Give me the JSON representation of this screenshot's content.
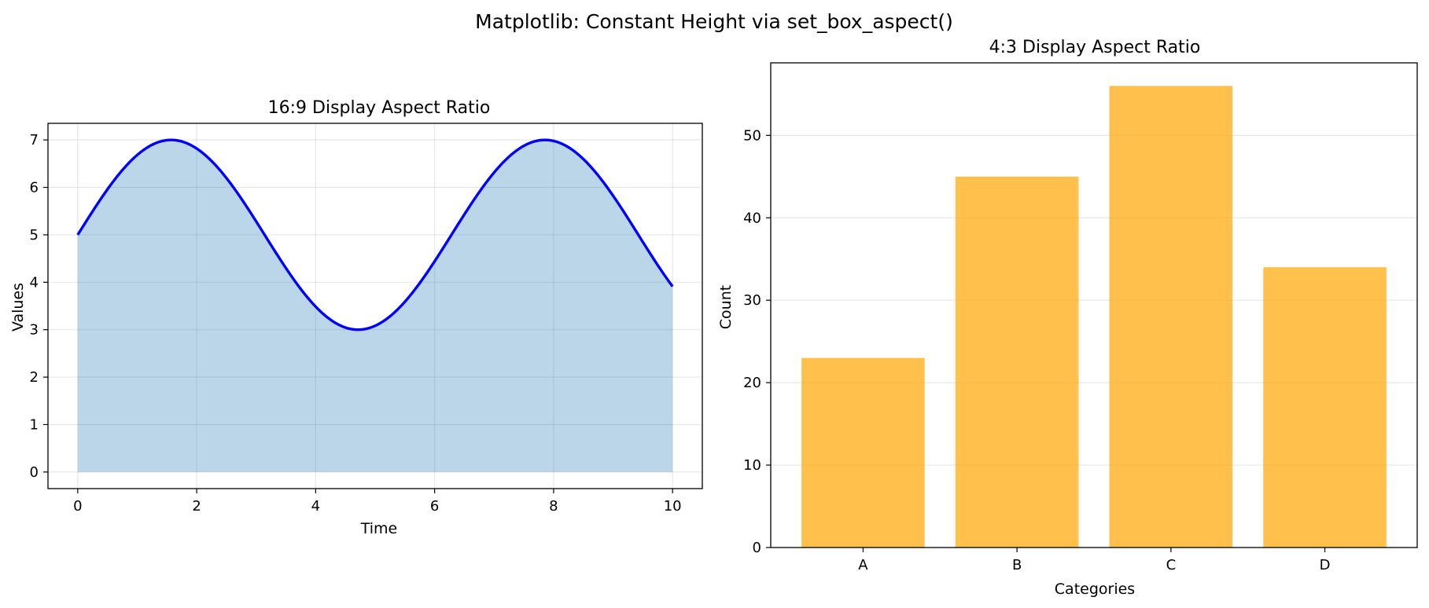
{
  "figure": {
    "suptitle": "Matplotlib: Constant Height via set_box_aspect()"
  },
  "chart_data": [
    {
      "type": "area",
      "title": "16:9 Display Aspect Ratio",
      "xlabel": "Time",
      "ylabel": "Values",
      "xlim": [
        -0.5,
        10.5
      ],
      "ylim": [
        -0.35,
        7.35
      ],
      "xticks": [
        0,
        2,
        4,
        6,
        8,
        10
      ],
      "yticks": [
        0,
        1,
        2,
        3,
        4,
        5,
        6,
        7
      ],
      "grid": true,
      "series": [
        {
          "function": "5 + 2*sin(x)",
          "x_range": [
            0,
            10
          ],
          "x": [
            0,
            0.5,
            1,
            1.5,
            1.57,
            2,
            2.5,
            3,
            3.5,
            4,
            4.5,
            4.71,
            5,
            5.5,
            6,
            6.5,
            7,
            7.5,
            7.85,
            8,
            8.5,
            9,
            9.5,
            10
          ],
          "y": [
            5.0,
            5.96,
            6.68,
            7.0,
            7.0,
            6.82,
            6.2,
            5.28,
            4.3,
            3.49,
            3.04,
            3.0,
            3.08,
            3.59,
            4.44,
            5.43,
            6.31,
            6.88,
            7.0,
            6.98,
            6.6,
            5.82,
            4.85,
            3.91
          ],
          "line_color": "#0000ff",
          "fill_color": "#1f77b4",
          "fill_alpha": 0.3
        }
      ]
    },
    {
      "type": "bar",
      "title": "4:3 Display Aspect Ratio",
      "xlabel": "Categories",
      "ylabel": "Count",
      "categories": [
        "A",
        "B",
        "C",
        "D"
      ],
      "values": [
        23,
        45,
        56,
        34
      ],
      "ylim": [
        0,
        58.8
      ],
      "yticks": [
        0,
        10,
        20,
        30,
        40,
        50
      ],
      "bar_color": "#ffa500",
      "bar_alpha": 0.7,
      "grid": "y-only"
    }
  ]
}
